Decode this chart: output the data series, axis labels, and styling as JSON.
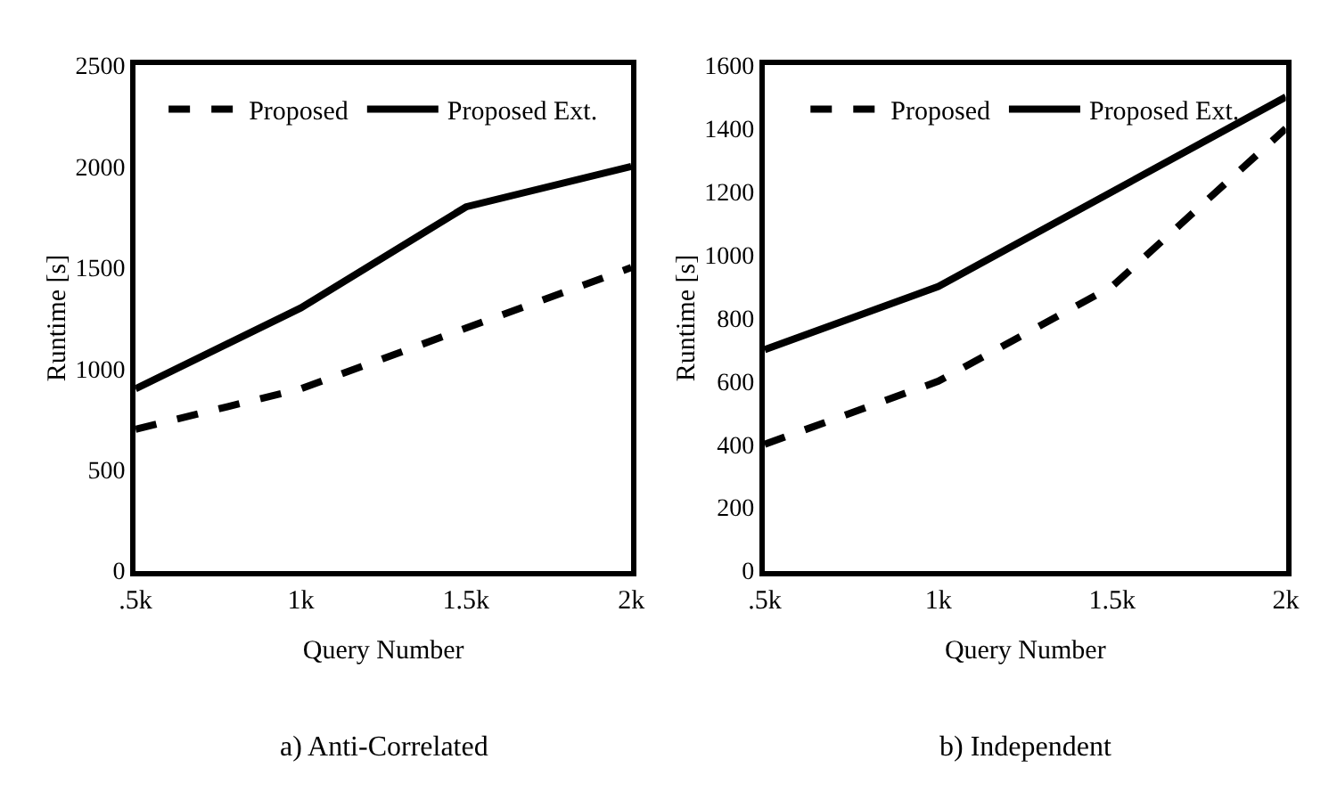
{
  "chart_data": [
    {
      "type": "line",
      "title": "a) Anti-Correlated",
      "xlabel": "Query Number",
      "ylabel": "Runtime [s]",
      "categories": [
        ".5k",
        "1k",
        "1.5k",
        "2k"
      ],
      "ylim": [
        0,
        2500
      ],
      "yticks": [
        0,
        500,
        1000,
        1500,
        2000,
        2500
      ],
      "legend": "top",
      "marker": "none",
      "series": [
        {
          "name": "Proposed",
          "color": "#000000",
          "line_style": "dashed",
          "values": [
            700,
            900,
            1200,
            1500
          ]
        },
        {
          "name": "Proposed Ext.",
          "color": "#000000",
          "line_style": "solid",
          "values": [
            900,
            1300,
            1800,
            2000
          ]
        }
      ]
    },
    {
      "type": "line",
      "title": "b) Independent",
      "xlabel": "Query Number",
      "ylabel": "Runtime [s]",
      "categories": [
        ".5k",
        "1k",
        "1.5k",
        "2k"
      ],
      "ylim": [
        0,
        1600
      ],
      "yticks": [
        0,
        200,
        400,
        600,
        800,
        1000,
        1200,
        1400,
        1600
      ],
      "legend": "top",
      "marker": "none",
      "series": [
        {
          "name": "Proposed",
          "color": "#000000",
          "line_style": "dashed",
          "values": [
            400,
            600,
            900,
            1400
          ]
        },
        {
          "name": "Proposed Ext.",
          "color": "#000000",
          "line_style": "solid",
          "values": [
            700,
            900,
            1200,
            1500
          ]
        }
      ]
    }
  ]
}
